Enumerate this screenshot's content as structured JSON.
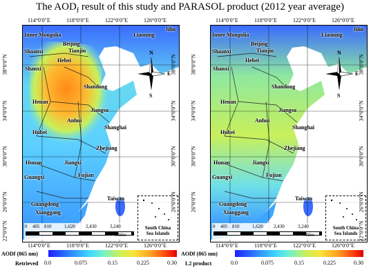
{
  "title": {
    "main": "The AOD",
    "sub": "f",
    "rest": " result of this study and PARASOL product (2012 year average)"
  },
  "lon_labels": [
    "114°0′0″E",
    "118°0′0″E",
    "122°0′0″E",
    "126°0′0″E"
  ],
  "lat_labels": [
    "38°0′0″N",
    "34°0′0″N",
    "30°0′0″N",
    "26°0′0″N",
    "22°0′0″N"
  ],
  "provinces": [
    "Inner Mongolia",
    "Liaoning",
    "Jilin",
    "Shaanxi",
    "Beijing",
    "Tianjin",
    "Hebei",
    "Shanxi",
    "Shandong",
    "Henan",
    "Jiangsu",
    "Anhui",
    "Hubei",
    "Shanghai",
    "Zhejiang",
    "Hunan",
    "Jiangxi",
    "Fujian",
    "Guangxi",
    "Guangdong",
    "Taiwan",
    "Xianggang"
  ],
  "compass": [
    "N",
    "E",
    "S",
    "W"
  ],
  "scale": {
    "ticks": [
      "0",
      "405",
      "810",
      "1,620",
      "2,430",
      "3,240"
    ],
    "unit": "Miles"
  },
  "inset_label": [
    "South China",
    "Sea Islands"
  ],
  "colorbar": {
    "ticks": [
      "0.0",
      "0.075",
      "0.15",
      "0.225",
      "0.30"
    ],
    "left_label_top": "AODf (865 nm)",
    "left_label_bottom": "Retrieved",
    "right_label_top": "AODf (865 nm)",
    "right_label_bottom": "L2 product"
  },
  "colors": {
    "land_low": "#3b8cff",
    "land_mid": "#6fe0e8",
    "land_high": "#ff9a20",
    "sea": "#ffffff"
  }
}
